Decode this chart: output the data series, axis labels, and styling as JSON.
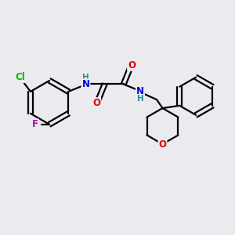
{
  "background_color": "#ebebef",
  "bond_color": "#000000",
  "bond_width": 1.6,
  "atom_colors": {
    "H": "#2e8b8b",
    "N": "#0000dd",
    "O": "#dd0000",
    "F": "#bb00bb",
    "Cl": "#00bb00"
  },
  "figsize": [
    3.0,
    3.0
  ],
  "dpi": 100
}
